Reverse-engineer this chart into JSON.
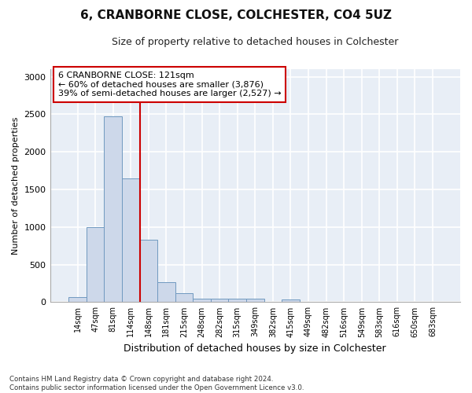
{
  "title": "6, CRANBORNE CLOSE, COLCHESTER, CO4 5UZ",
  "subtitle": "Size of property relative to detached houses in Colchester",
  "xlabel": "Distribution of detached houses by size in Colchester",
  "ylabel": "Number of detached properties",
  "bar_color": "#cdd8ea",
  "bar_edge_color": "#7099c0",
  "background_color": "#e8eef6",
  "grid_color": "#ffffff",
  "annotation_box_color": "#cc0000",
  "vline_color": "#cc0000",
  "annotation_text": "6 CRANBORNE CLOSE: 121sqm\n← 60% of detached houses are smaller (3,876)\n39% of semi-detached houses are larger (2,527) →",
  "bin_labels": [
    "14sqm",
    "47sqm",
    "81sqm",
    "114sqm",
    "148sqm",
    "181sqm",
    "215sqm",
    "248sqm",
    "282sqm",
    "315sqm",
    "349sqm",
    "382sqm",
    "415sqm",
    "449sqm",
    "482sqm",
    "516sqm",
    "549sqm",
    "583sqm",
    "616sqm",
    "650sqm",
    "683sqm"
  ],
  "bar_heights": [
    70,
    1000,
    2475,
    1650,
    830,
    270,
    120,
    50,
    50,
    50,
    50,
    0,
    40,
    0,
    0,
    0,
    0,
    0,
    0,
    0,
    0
  ],
  "vline_x": 3.5,
  "ylim": [
    0,
    3100
  ],
  "yticks": [
    0,
    500,
    1000,
    1500,
    2000,
    2500,
    3000
  ],
  "footnote": "Contains HM Land Registry data © Crown copyright and database right 2024.\nContains public sector information licensed under the Open Government Licence v3.0."
}
